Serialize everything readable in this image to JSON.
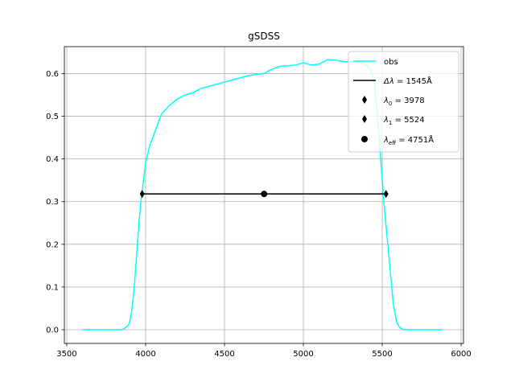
{
  "chart_data": {
    "type": "line",
    "title": "gSDSS",
    "xlabel": "",
    "ylabel": "",
    "xlim": [
      3485,
      6015
    ],
    "ylim": [
      -0.032,
      0.663
    ],
    "xticks": [
      3500,
      4000,
      4500,
      5000,
      5500,
      6000
    ],
    "yticks": [
      0.0,
      0.1,
      0.2,
      0.3,
      0.4,
      0.5,
      0.6
    ],
    "grid": true,
    "legend_position": "top-right",
    "series": [
      {
        "name": "obs",
        "kind": "line",
        "color": "#00ffff",
        "x": [
          3600,
          3850,
          3870,
          3890,
          3900,
          3910,
          3920,
          3930,
          3940,
          3950,
          3960,
          3970,
          3980,
          3990,
          4000,
          4025,
          4050,
          4075,
          4100,
          4125,
          4150,
          4200,
          4250,
          4300,
          4350,
          4400,
          4450,
          4500,
          4550,
          4600,
          4650,
          4700,
          4750,
          4800,
          4850,
          4900,
          4950,
          5000,
          5050,
          5100,
          5150,
          5200,
          5250,
          5300,
          5350,
          5400,
          5425,
          5450,
          5470,
          5480,
          5490,
          5500,
          5510,
          5520,
          5530,
          5550,
          5570,
          5590,
          5610,
          5630,
          5650,
          5700,
          5880
        ],
        "y": [
          0.0,
          0.0,
          0.004,
          0.01,
          0.02,
          0.04,
          0.07,
          0.11,
          0.16,
          0.21,
          0.26,
          0.3,
          0.33,
          0.36,
          0.39,
          0.43,
          0.455,
          0.48,
          0.505,
          0.515,
          0.525,
          0.54,
          0.55,
          0.555,
          0.565,
          0.57,
          0.575,
          0.58,
          0.585,
          0.59,
          0.595,
          0.598,
          0.6,
          0.61,
          0.617,
          0.618,
          0.62,
          0.625,
          0.62,
          0.622,
          0.632,
          0.632,
          0.628,
          0.628,
          0.627,
          0.62,
          0.61,
          0.58,
          0.5,
          0.45,
          0.4,
          0.35,
          0.3,
          0.26,
          0.22,
          0.14,
          0.06,
          0.02,
          0.005,
          0.001,
          0.0,
          0.0,
          0.0
        ]
      },
      {
        "name": "$\\Delta\\lambda = 1545$Å",
        "kind": "hline",
        "color": "#000000",
        "x": [
          3978,
          5524
        ],
        "y": [
          0.318,
          0.318
        ]
      },
      {
        "name": "$\\lambda_0 = 3978$",
        "kind": "marker-diamond",
        "color": "#000000",
        "x": [
          3978
        ],
        "y": [
          0.318
        ]
      },
      {
        "name": "$\\lambda_1 = 5524$",
        "kind": "marker-diamond",
        "color": "#000000",
        "x": [
          5524
        ],
        "y": [
          0.318
        ]
      },
      {
        "name": "$\\lambda_{\\rm eff} = 4751$Å",
        "kind": "marker-circle",
        "color": "#000000",
        "x": [
          4751
        ],
        "y": [
          0.318
        ]
      }
    ],
    "legend_labels": [
      {
        "text": "obs"
      },
      {
        "pre": "Δλ = 1545Å"
      },
      {
        "lam": "λ",
        "sub": "0",
        "post": " = 3978"
      },
      {
        "lam": "λ",
        "sub": "1",
        "post": " = 5524"
      },
      {
        "lam": "λ",
        "sub": "eff",
        "post": " = 4751Å"
      }
    ]
  }
}
